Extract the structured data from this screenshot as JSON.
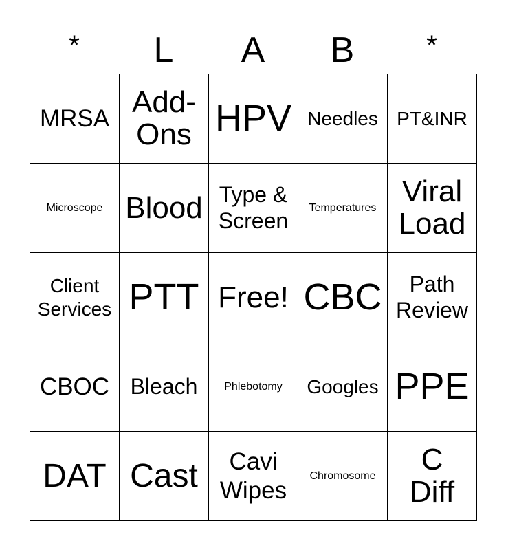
{
  "header": {
    "letters": [
      "*",
      "L",
      "A",
      "B",
      "*"
    ]
  },
  "board": {
    "rows": [
      [
        "MRSA",
        "Add-\nOns",
        "HPV",
        "Needles",
        "PT&INR"
      ],
      [
        "Microscope",
        "Blood",
        "Type &\nScreen",
        "Temperatures",
        "Viral\nLoad"
      ],
      [
        "Client\nServices",
        "PTT",
        "Free!",
        "CBC",
        "Path\nReview"
      ],
      [
        "CBOC",
        "Bleach",
        "Phlebotomy",
        "Googles",
        "PPE"
      ],
      [
        "DAT",
        "Cast",
        "Cavi\nWipes",
        "Chromosome",
        "C\nDiff"
      ]
    ]
  }
}
